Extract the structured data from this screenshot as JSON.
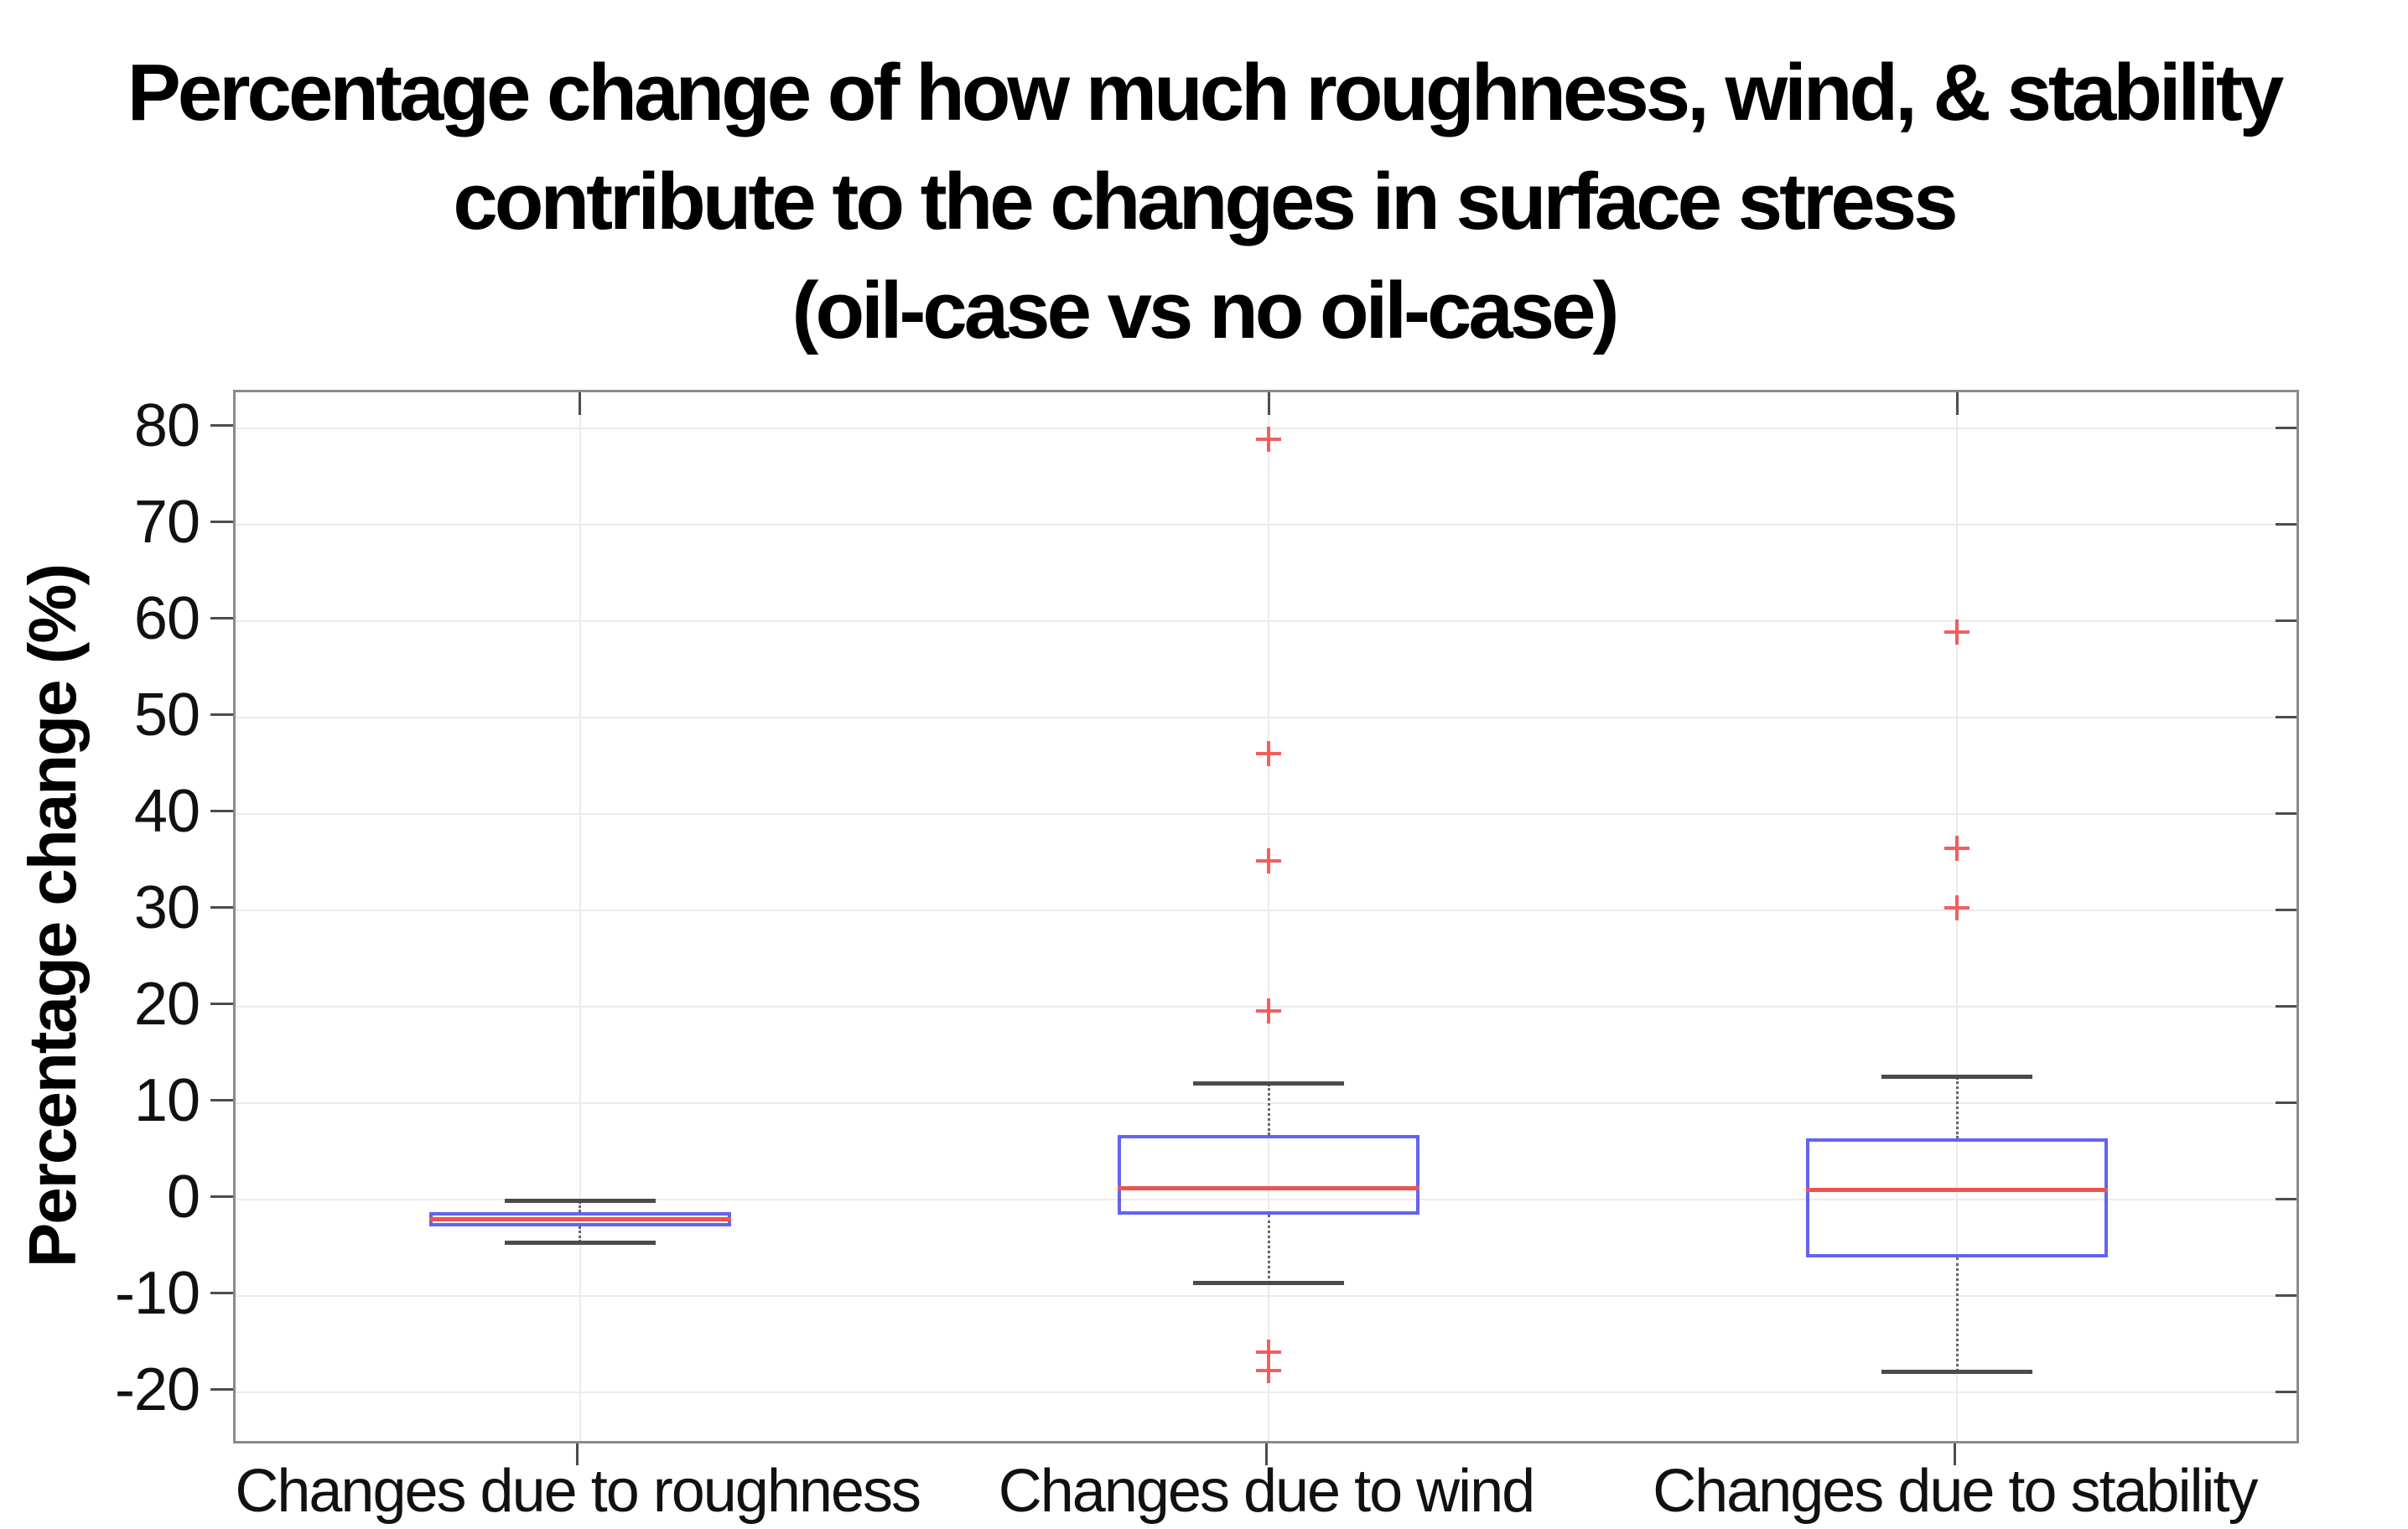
{
  "title": {
    "line1": "Percentage change of how much roughness, wind, & stability",
    "line2": "contribute to the changes in surface stress",
    "line3": "(oil-case vs no oil-case)"
  },
  "y_axis": {
    "label": "Percentage change (%)",
    "tick_labels": [
      "80",
      "70",
      "60",
      "50",
      "40",
      "30",
      "20",
      "10",
      "0",
      "-10",
      "-20"
    ]
  },
  "x_axis": {
    "category_labels": [
      "Changes due to roughness",
      "Changes due to wind",
      "Changes due to stability"
    ]
  },
  "colors": {
    "box_edge": "#6363f2",
    "median": "#f05252",
    "outlier": "#f15f5f",
    "whisker": "#666666",
    "cap": "#4b4b4b",
    "grid": "#ebebeb",
    "frame": "#8a8a8a",
    "tick": "#4d4d4d",
    "text": "#000000"
  },
  "chart_data": {
    "type": "boxplot",
    "title": "Percentage change of how much roughness, wind, & stability contribute to the changes in surface stress (oil-case vs no oil-case)",
    "xlabel": "",
    "ylabel": "Percentage change (%)",
    "ylim": [
      -25.6,
      83.7
    ],
    "yticks": [
      80,
      70,
      60,
      50,
      40,
      30,
      20,
      10,
      0,
      -10,
      -20
    ],
    "grid": true,
    "legend_position": "none",
    "categories": [
      "Changes due to roughness",
      "Changes due to wind",
      "Changes due to stability"
    ],
    "series": [
      {
        "name": "Changes due to roughness",
        "whisker_low": -4.5,
        "q1": -2.8,
        "median": -2.1,
        "q3": -1.3,
        "whisker_high": -0.2,
        "outliers": []
      },
      {
        "name": "Changes due to wind",
        "whisker_low": -8.7,
        "q1": -1.6,
        "median": 1.1,
        "q3": 6.7,
        "whisker_high": 12.0,
        "outliers": [
          78.8,
          46.2,
          35.1,
          19.5,
          -15.9,
          -17.8
        ]
      },
      {
        "name": "Changes due to stability",
        "whisker_low": -17.9,
        "q1": -6.0,
        "median": 1.0,
        "q3": 6.3,
        "whisker_high": 12.7,
        "outliers": [
          58.8,
          36.4,
          30.2
        ]
      }
    ]
  }
}
